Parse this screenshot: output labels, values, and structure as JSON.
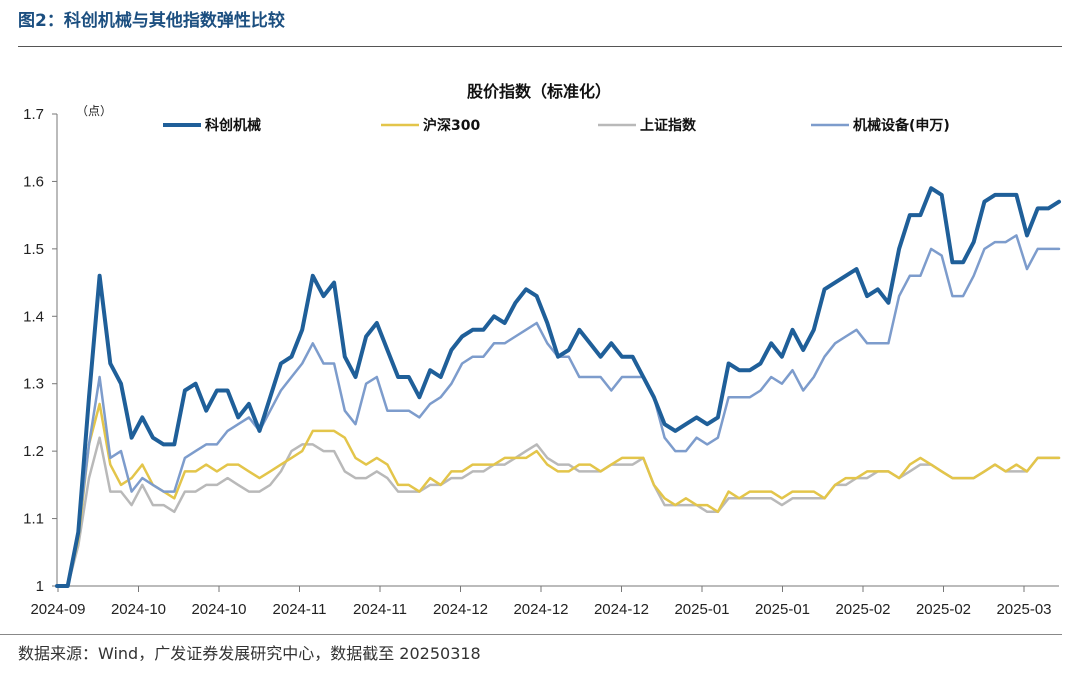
{
  "figure": {
    "label": "图2：科创机械与其他指数弹性比较",
    "source": "数据来源：Wind，广发证券发展研究中心，数据截至 20250318"
  },
  "chart_data": {
    "type": "line",
    "title": "股价指数（标准化）",
    "unit": "（点）",
    "ylim": [
      1.0,
      1.7
    ],
    "yticks": [
      "1.7",
      "1.6",
      "1.5",
      "1.4",
      "1.3",
      "1.2",
      "1.1",
      "1"
    ],
    "xtick_labels": [
      "2024-09",
      "2024-10",
      "2024-10",
      "2024-11",
      "2024-11",
      "2024-12",
      "2024-12",
      "2024-12",
      "2025-01",
      "2025-01",
      "2025-02",
      "2025-02",
      "2025-03"
    ],
    "grid": false,
    "legend_position": "top",
    "series": [
      {
        "name": "科创机械",
        "color": "#1f5f99",
        "width": 4,
        "values": [
          1.0,
          1.0,
          1.08,
          1.28,
          1.46,
          1.33,
          1.3,
          1.22,
          1.25,
          1.22,
          1.21,
          1.21,
          1.29,
          1.3,
          1.26,
          1.29,
          1.29,
          1.25,
          1.27,
          1.23,
          1.28,
          1.33,
          1.34,
          1.38,
          1.46,
          1.43,
          1.45,
          1.34,
          1.31,
          1.37,
          1.39,
          1.35,
          1.31,
          1.31,
          1.28,
          1.32,
          1.31,
          1.35,
          1.37,
          1.38,
          1.38,
          1.4,
          1.39,
          1.42,
          1.44,
          1.43,
          1.39,
          1.34,
          1.35,
          1.38,
          1.36,
          1.34,
          1.36,
          1.34,
          1.34,
          1.31,
          1.28,
          1.24,
          1.23,
          1.24,
          1.25,
          1.24,
          1.25,
          1.33,
          1.32,
          1.32,
          1.33,
          1.36,
          1.34,
          1.38,
          1.35,
          1.38,
          1.44,
          1.45,
          1.46,
          1.47,
          1.43,
          1.44,
          1.42,
          1.5,
          1.55,
          1.55,
          1.59,
          1.58,
          1.48,
          1.48,
          1.51,
          1.57,
          1.58,
          1.58,
          1.58,
          1.52,
          1.56,
          1.56,
          1.57
        ]
      },
      {
        "name": "沪深300",
        "color": "#e3c54a",
        "width": 2.5,
        "values": [
          1.0,
          1.0,
          1.07,
          1.21,
          1.27,
          1.18,
          1.15,
          1.16,
          1.18,
          1.15,
          1.14,
          1.13,
          1.17,
          1.17,
          1.18,
          1.17,
          1.18,
          1.18,
          1.17,
          1.16,
          1.17,
          1.18,
          1.19,
          1.2,
          1.23,
          1.23,
          1.23,
          1.22,
          1.19,
          1.18,
          1.19,
          1.18,
          1.15,
          1.15,
          1.14,
          1.16,
          1.15,
          1.17,
          1.17,
          1.18,
          1.18,
          1.18,
          1.19,
          1.19,
          1.19,
          1.2,
          1.18,
          1.17,
          1.17,
          1.18,
          1.18,
          1.17,
          1.18,
          1.19,
          1.19,
          1.19,
          1.15,
          1.13,
          1.12,
          1.13,
          1.12,
          1.12,
          1.11,
          1.14,
          1.13,
          1.14,
          1.14,
          1.14,
          1.13,
          1.14,
          1.14,
          1.14,
          1.13,
          1.15,
          1.16,
          1.16,
          1.17,
          1.17,
          1.17,
          1.16,
          1.18,
          1.19,
          1.18,
          1.17,
          1.16,
          1.16,
          1.16,
          1.17,
          1.18,
          1.17,
          1.18,
          1.17,
          1.19,
          1.19,
          1.19
        ]
      },
      {
        "name": "上证指数",
        "color": "#b9b9b9",
        "width": 2.5,
        "values": [
          1.0,
          1.0,
          1.06,
          1.16,
          1.22,
          1.14,
          1.14,
          1.12,
          1.15,
          1.12,
          1.12,
          1.11,
          1.14,
          1.14,
          1.15,
          1.15,
          1.16,
          1.15,
          1.14,
          1.14,
          1.15,
          1.17,
          1.2,
          1.21,
          1.21,
          1.2,
          1.2,
          1.17,
          1.16,
          1.16,
          1.17,
          1.16,
          1.14,
          1.14,
          1.14,
          1.15,
          1.15,
          1.16,
          1.16,
          1.17,
          1.17,
          1.18,
          1.18,
          1.19,
          1.2,
          1.21,
          1.19,
          1.18,
          1.18,
          1.17,
          1.17,
          1.17,
          1.18,
          1.18,
          1.18,
          1.19,
          1.15,
          1.12,
          1.12,
          1.12,
          1.12,
          1.11,
          1.11,
          1.13,
          1.13,
          1.13,
          1.13,
          1.13,
          1.12,
          1.13,
          1.13,
          1.13,
          1.13,
          1.15,
          1.15,
          1.16,
          1.16,
          1.17,
          1.17,
          1.16,
          1.17,
          1.18,
          1.18,
          1.17,
          1.16,
          1.16,
          1.16,
          1.17,
          1.18,
          1.17,
          1.17,
          1.17,
          1.19,
          1.19,
          1.19
        ]
      },
      {
        "name": "机械设备(申万)",
        "color": "#7d9ccc",
        "width": 2.5,
        "values": [
          1.0,
          1.0,
          1.08,
          1.21,
          1.31,
          1.19,
          1.2,
          1.14,
          1.16,
          1.15,
          1.14,
          1.14,
          1.19,
          1.2,
          1.21,
          1.21,
          1.23,
          1.24,
          1.25,
          1.23,
          1.26,
          1.29,
          1.31,
          1.33,
          1.36,
          1.33,
          1.33,
          1.26,
          1.24,
          1.3,
          1.31,
          1.26,
          1.26,
          1.26,
          1.25,
          1.27,
          1.28,
          1.3,
          1.33,
          1.34,
          1.34,
          1.36,
          1.36,
          1.37,
          1.38,
          1.39,
          1.36,
          1.34,
          1.34,
          1.31,
          1.31,
          1.31,
          1.29,
          1.31,
          1.31,
          1.31,
          1.28,
          1.22,
          1.2,
          1.2,
          1.22,
          1.21,
          1.22,
          1.28,
          1.28,
          1.28,
          1.29,
          1.31,
          1.3,
          1.32,
          1.29,
          1.31,
          1.34,
          1.36,
          1.37,
          1.38,
          1.36,
          1.36,
          1.36,
          1.43,
          1.46,
          1.46,
          1.5,
          1.49,
          1.43,
          1.43,
          1.46,
          1.5,
          1.51,
          1.51,
          1.52,
          1.47,
          1.5,
          1.5,
          1.5
        ]
      }
    ]
  }
}
